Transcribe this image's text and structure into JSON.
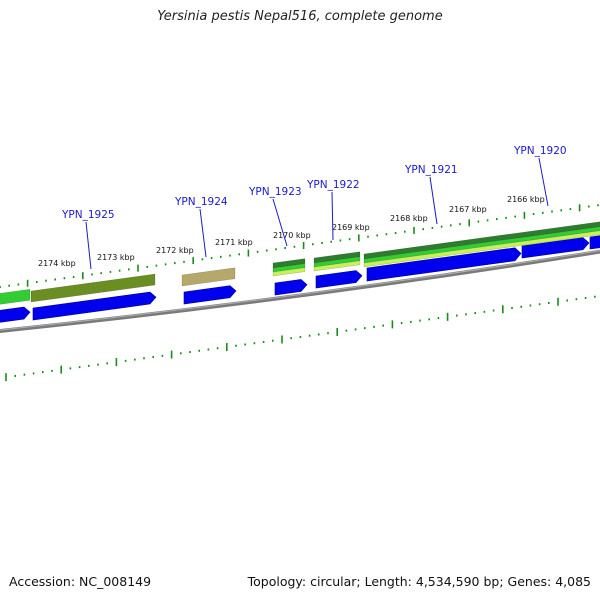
{
  "title": "Yersinia pestis Nepal516, complete genome",
  "accession_label": "Accession: NC_008149",
  "topology_label": "Topology: circular; Length: 4,534,590 bp; Genes: 4,085",
  "colors": {
    "gene_label": "#1a1acc",
    "cds_arrow": "#0000ee",
    "backbone": "#808080",
    "tick": "#1a8a1a",
    "feature_dark_green": "#2e7d2e",
    "feature_olive": "#6b8e23",
    "feature_tan": "#b5a86a",
    "feature_light_green": "#32cd32",
    "feature_yellow_green": "#c8f05a"
  },
  "scale_labels": [
    "2174 kbp",
    "2173 kbp",
    "2172 kbp",
    "2171 kbp",
    "2170 kbp",
    "2169 kbp",
    "2168 kbp",
    "2167 kbp",
    "2166 kbp"
  ],
  "genes": [
    {
      "name": "YPN_1925"
    },
    {
      "name": "YPN_1924"
    },
    {
      "name": "YPN_1923"
    },
    {
      "name": "YPN_1922"
    },
    {
      "name": "YPN_1921"
    },
    {
      "name": "YPN_1920"
    }
  ]
}
